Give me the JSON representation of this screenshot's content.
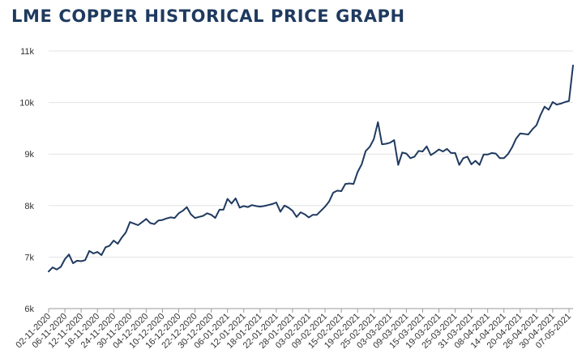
{
  "title": "LME COPPER HISTORICAL PRICE GRAPH",
  "colors": {
    "title": "#1f3a5f",
    "line": "#1f3a5f",
    "grid": "#e2e2e2",
    "axis": "#999999"
  },
  "chart_data": {
    "type": "line",
    "title": "LME COPPER HISTORICAL PRICE GRAPH",
    "xlabel": "",
    "ylabel": "",
    "ylim": [
      6000,
      11000
    ],
    "grid": true,
    "y_ticks": [
      {
        "value": 6000,
        "label": "6k"
      },
      {
        "value": 7000,
        "label": "7k"
      },
      {
        "value": 8000,
        "label": "8k"
      },
      {
        "value": 9000,
        "label": "9k"
      },
      {
        "value": 10000,
        "label": "10k"
      },
      {
        "value": 11000,
        "label": "11k"
      }
    ],
    "x_ticks": [
      {
        "index": 0,
        "label": "02-11-2020"
      },
      {
        "index": 4,
        "label": "06-11-2020"
      },
      {
        "index": 8,
        "label": "12-11-2020"
      },
      {
        "index": 12,
        "label": "18-11-2020"
      },
      {
        "index": 16,
        "label": "24-11-2020"
      },
      {
        "index": 20,
        "label": "30-11-2020"
      },
      {
        "index": 24,
        "label": "04-12-2020"
      },
      {
        "index": 28,
        "label": "10-12-2020"
      },
      {
        "index": 32,
        "label": "16-12-2020"
      },
      {
        "index": 36,
        "label": "22-12-2020"
      },
      {
        "index": 40,
        "label": "30-12-2020"
      },
      {
        "index": 44,
        "label": "06-01-2021"
      },
      {
        "index": 48,
        "label": "12-01-2021"
      },
      {
        "index": 52,
        "label": "18-01-2021"
      },
      {
        "index": 56,
        "label": "22-01-2021"
      },
      {
        "index": 60,
        "label": "28-01-2021"
      },
      {
        "index": 64,
        "label": "03-02-2021"
      },
      {
        "index": 68,
        "label": "09-02-2021"
      },
      {
        "index": 72,
        "label": "15-02-2021"
      },
      {
        "index": 76,
        "label": "19-02-2021"
      },
      {
        "index": 80,
        "label": "25-02-2021"
      },
      {
        "index": 84,
        "label": "03-03-2021"
      },
      {
        "index": 88,
        "label": "09-03-2021"
      },
      {
        "index": 92,
        "label": "15-03-2021"
      },
      {
        "index": 96,
        "label": "19-03-2021"
      },
      {
        "index": 100,
        "label": "25-03-2021"
      },
      {
        "index": 104,
        "label": "31-03-2021"
      },
      {
        "index": 108,
        "label": "08-04-2021"
      },
      {
        "index": 112,
        "label": "14-04-2021"
      },
      {
        "index": 116,
        "label": "20-04-2021"
      },
      {
        "index": 120,
        "label": "26-04-2021"
      },
      {
        "index": 124,
        "label": "30-04-2021"
      },
      {
        "index": 128,
        "label": "07-05-2021"
      }
    ],
    "series": [
      {
        "values": [
          6720,
          6800,
          6760,
          6810,
          6960,
          7050,
          6880,
          6930,
          6920,
          6940,
          7120,
          7070,
          7100,
          7040,
          7190,
          7220,
          7320,
          7260,
          7380,
          7480,
          7680,
          7650,
          7620,
          7680,
          7740,
          7660,
          7640,
          7710,
          7720,
          7750,
          7770,
          7760,
          7850,
          7900,
          7970,
          7830,
          7760,
          7780,
          7800,
          7850,
          7820,
          7760,
          7920,
          7920,
          8130,
          8040,
          8140,
          7960,
          7990,
          7970,
          8010,
          7990,
          7980,
          7990,
          8010,
          8030,
          8060,
          7880,
          8000,
          7960,
          7900,
          7780,
          7870,
          7830,
          7770,
          7820,
          7820,
          7900,
          7980,
          8080,
          8250,
          8290,
          8280,
          8420,
          8430,
          8420,
          8650,
          8800,
          9060,
          9140,
          9290,
          9620,
          9190,
          9200,
          9220,
          9270,
          8790,
          9030,
          9010,
          8920,
          8950,
          9060,
          9050,
          9150,
          8980,
          9030,
          9090,
          9050,
          9100,
          9020,
          9020,
          8790,
          8920,
          8950,
          8800,
          8870,
          8790,
          8990,
          8990,
          9020,
          9010,
          8920,
          8920,
          9000,
          9130,
          9300,
          9400,
          9390,
          9380,
          9480,
          9560,
          9760,
          9920,
          9860,
          10010,
          9960,
          9980,
          10010,
          10030,
          10720
        ]
      }
    ]
  }
}
